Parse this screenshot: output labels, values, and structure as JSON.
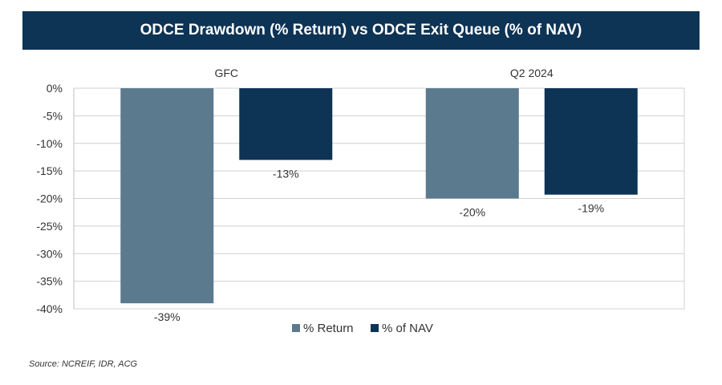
{
  "title": "ODCE Drawdown (% Return) vs ODCE Exit Queue (% of NAV)",
  "source": "Source: NCREIF, IDR, ACG",
  "chart_data": {
    "type": "bar",
    "title": "ODCE Drawdown (% Return) vs ODCE Exit Queue (% of NAV)",
    "categories": [
      "GFC",
      "Q2 2024"
    ],
    "series": [
      {
        "name": "% Return",
        "values": [
          -39,
          -20
        ],
        "labels": [
          "-39%",
          "-20%"
        ],
        "color": "#5b7a8e"
      },
      {
        "name": "% of NAV",
        "values": [
          -13,
          -19.3
        ],
        "labels": [
          "-13%",
          "-19%"
        ],
        "color": "#0d3355"
      }
    ],
    "ylim": [
      -40,
      0
    ],
    "yticks": [
      0,
      -5,
      -10,
      -15,
      -20,
      -25,
      -30,
      -35,
      -40
    ],
    "ytick_labels": [
      "0%",
      "-5%",
      "-10%",
      "-15%",
      "-20%",
      "-25%",
      "-30%",
      "-35%",
      "-40%"
    ],
    "category_label_position": "top",
    "grid": true,
    "legend": "bottom",
    "xlabel": "",
    "ylabel": ""
  }
}
